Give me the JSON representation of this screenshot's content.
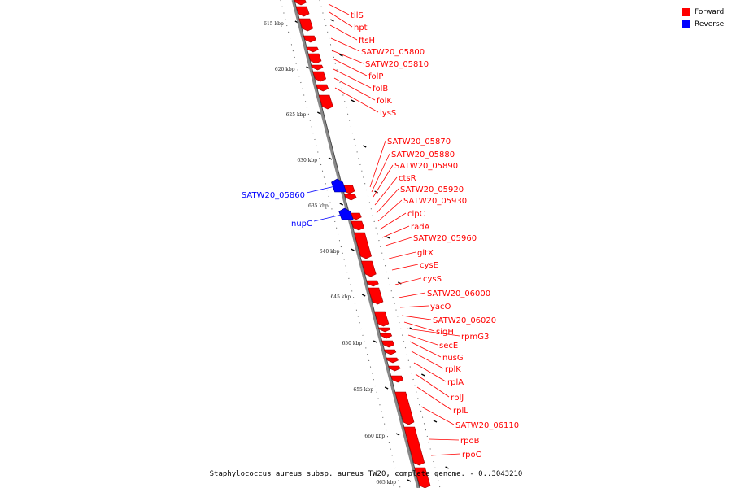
{
  "legend": {
    "forward": {
      "label": "Forward",
      "color": "#ff0000"
    },
    "reverse": {
      "label": "Reverse",
      "color": "#0000ff"
    }
  },
  "caption": "Staphylococcus aureus subsp. aureus TW20, complete genome. - 0..3043210",
  "ticks": [
    "615 kbp",
    "620 kbp",
    "625 kbp",
    "630 kbp",
    "635 kbp",
    "640 kbp",
    "645 kbp",
    "650 kbp",
    "655 kbp",
    "660 kbp",
    "665 kbp"
  ],
  "forward_genes": [
    "tilS",
    "hpt",
    "ftsH",
    "SATW20_05800",
    "SATW20_05810",
    "folP",
    "folB",
    "folK",
    "lysS",
    "SATW20_05870",
    "SATW20_05880",
    "SATW20_05890",
    "ctsR",
    "SATW20_05920",
    "SATW20_05930",
    "clpC",
    "radA",
    "SATW20_05960",
    "gltX",
    "cysE",
    "cysS",
    "SATW20_06000",
    "yacO",
    "SATW20_06020",
    "sigH",
    "rpmG3",
    "secE",
    "nusG",
    "rplK",
    "rplA",
    "rplJ",
    "rplL",
    "SATW20_06110",
    "rpoB",
    "rpoC"
  ],
  "reverse_genes": [
    "SATW20_05860",
    "nupC"
  ]
}
